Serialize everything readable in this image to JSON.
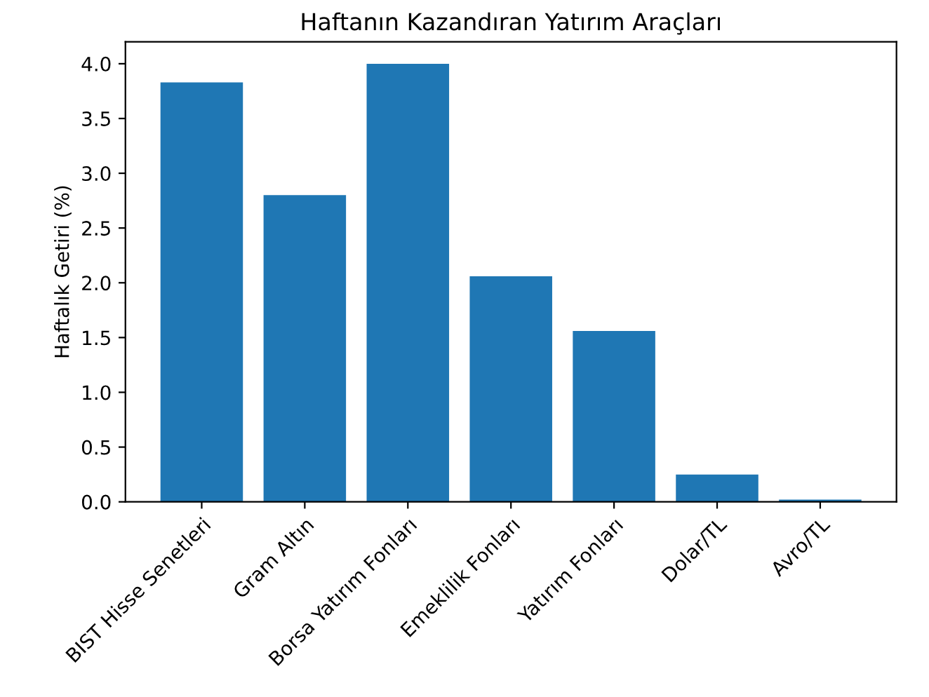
{
  "chart_data": {
    "type": "bar",
    "title": "Haftanın Kazandıran Yatırım Araçları",
    "ylabel": "Haftalık Getiri (%)",
    "categories": [
      "BIST Hisse Senetleri",
      "Gram Altın",
      "Borsa Yatırım Fonları",
      "Emeklilik Fonları",
      "Yatırım Fonları",
      "Dolar/TL",
      "Avro/TL"
    ],
    "values": [
      3.83,
      2.8,
      4.0,
      2.06,
      1.56,
      0.25,
      0.02
    ],
    "color": "#1f77b4",
    "ylim": [
      0,
      4.2
    ],
    "yticks": [
      {
        "value": 0,
        "label": "0.0"
      },
      0.5,
      {
        "value": 1,
        "label": "1.0"
      },
      1.5,
      {
        "value": 2,
        "label": "2.0"
      },
      2.5,
      {
        "value": 3,
        "label": "3.0"
      },
      3.5,
      {
        "value": 4,
        "label": "4.0"
      }
    ],
    "grid": false,
    "legend": false
  }
}
